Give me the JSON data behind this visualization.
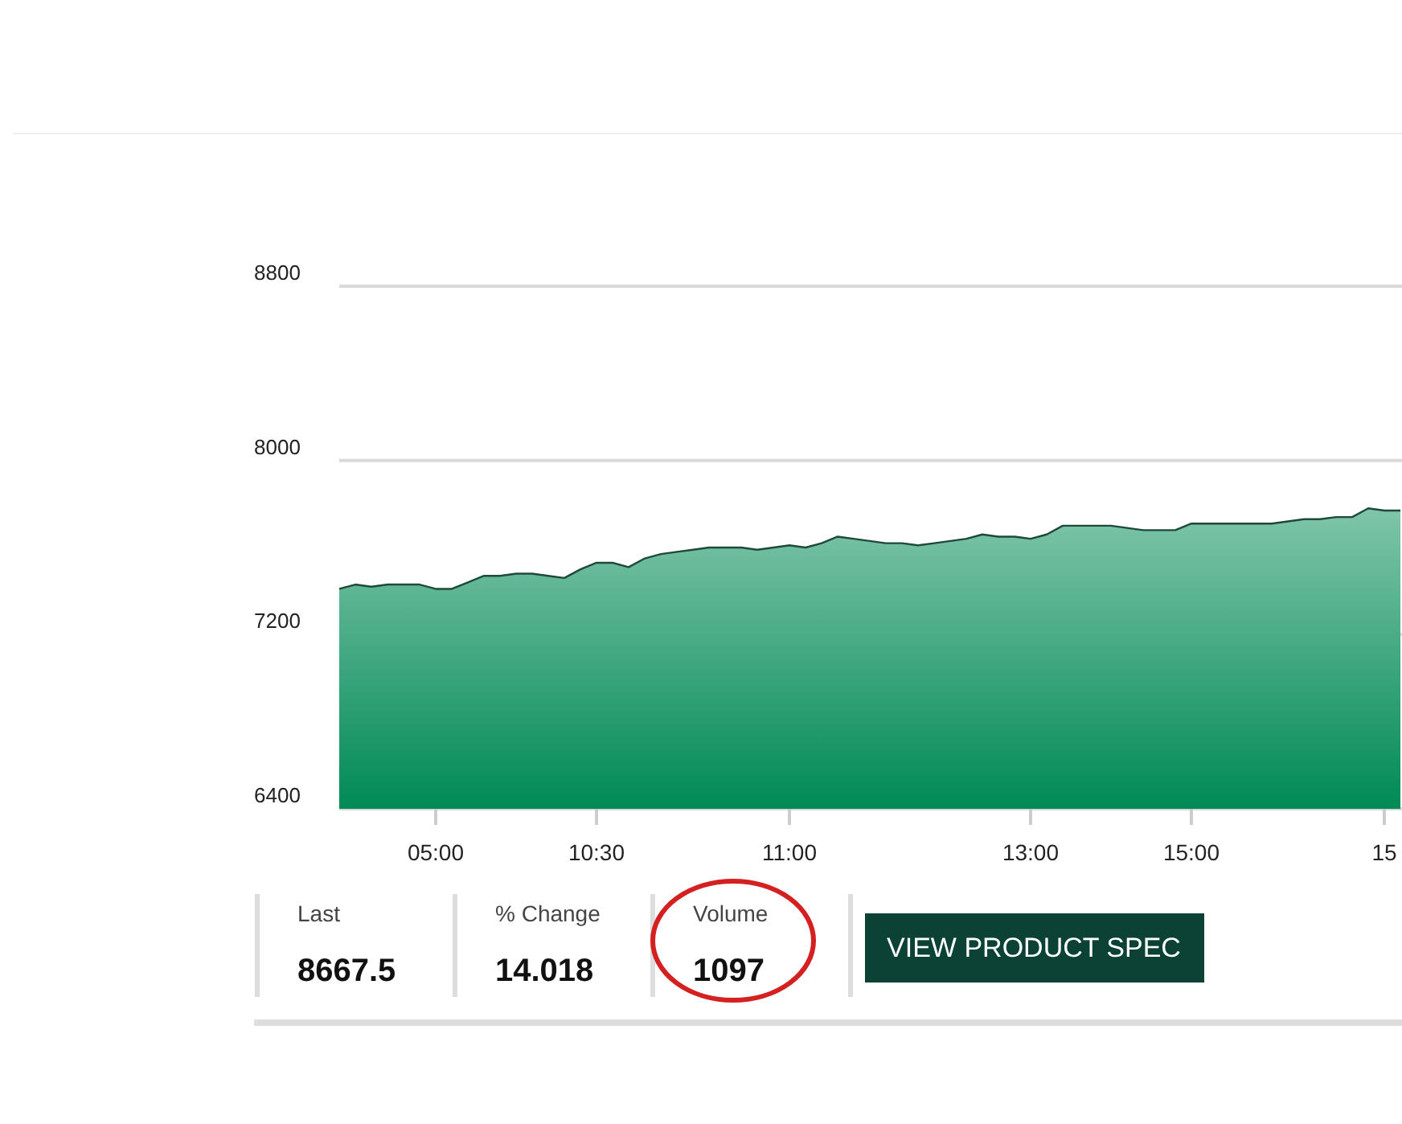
{
  "chart_data": {
    "type": "area",
    "categories": [
      null,
      null,
      null,
      null,
      null,
      null,
      "05:00",
      null,
      null,
      null,
      null,
      null,
      null,
      null,
      null,
      null,
      "10:30",
      null,
      null,
      null,
      null,
      null,
      null,
      null,
      null,
      null,
      null,
      null,
      "11:00",
      null,
      null,
      null,
      null,
      null,
      null,
      null,
      null,
      null,
      null,
      null,
      null,
      null,
      null,
      "13:00",
      null,
      null,
      null,
      null,
      null,
      null,
      null,
      null,
      null,
      "15:00",
      null,
      null,
      null,
      null,
      null,
      null,
      null,
      null,
      null,
      null,
      null,
      "15",
      null
    ],
    "series": [
      {
        "color": "#008a55",
        "values": [
          7410,
          7430,
          7420,
          7430,
          7430,
          7430,
          7410,
          7410,
          7440,
          7470,
          7470,
          7480,
          7480,
          7470,
          7460,
          7500,
          7530,
          7530,
          7510,
          7550,
          7570,
          7580,
          7590,
          7600,
          7600,
          7600,
          7590,
          7600,
          7610,
          7600,
          7620,
          7650,
          7640,
          7630,
          7620,
          7620,
          7610,
          7620,
          7630,
          7640,
          7660,
          7650,
          7650,
          7640,
          7660,
          7700,
          7700,
          7700,
          7700,
          7690,
          7680,
          7680,
          7680,
          7710,
          7710,
          7710,
          7710,
          7710,
          7710,
          7720,
          7730,
          7730,
          7740,
          7740,
          7780,
          7770,
          7770
        ]
      }
    ],
    "ylim": [
      6400,
      8800
    ],
    "yticks": [
      6400,
      7200,
      8000,
      8800
    ],
    "grid": "y",
    "annotations": [
      "Last",
      "8667.5",
      "% Change",
      "14.018",
      "Volume",
      "1097",
      "VIEW PRODUCT SPEC"
    ]
  }
}
